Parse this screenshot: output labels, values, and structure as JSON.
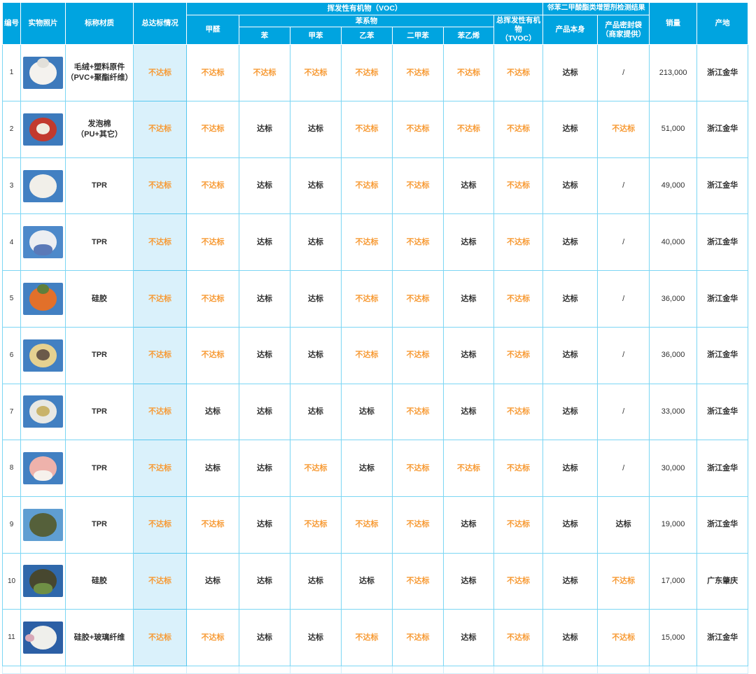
{
  "table": {
    "columns": {
      "id": "编号",
      "photo": "实物照片",
      "material": "标称材质",
      "overall": "总达标情况",
      "voc_group": "挥发性有机物（VOC）",
      "formaldehyde": "甲醛",
      "benzene_group": "苯系物",
      "benzene": "苯",
      "toluene": "甲苯",
      "ethylbenzene": "乙苯",
      "xylene": "二甲苯",
      "styrene": "苯乙烯",
      "tvoc": "总挥发性有机物\n（TVOC）",
      "phthalate_group": "邻苯二甲酸酯类增塑剂检测结果",
      "product_itself": "产品本身",
      "sealed_bag": "产品密封袋\n（商家提供）",
      "sales": "销量",
      "origin": "产地"
    },
    "status_labels": {
      "pass": "达标",
      "fail": "不达标",
      "not_applicable": "/"
    },
    "rows": [
      {
        "id": "1",
        "material": "毛绒+塑料原件\n（PVC+聚酯纤维）",
        "overall": "不达标",
        "formaldehyde": "不达标",
        "benzene": "不达标",
        "toluene": "不达标",
        "ethylbenzene": "不达标",
        "xylene": "不达标",
        "styrene": "不达标",
        "tvoc": "不达标",
        "product_itself": "达标",
        "sealed_bag": "/",
        "sales": "213,000",
        "origin": "浙江金华",
        "photo": {
          "desc": "white-plush-dog",
          "bg": "#3d7abc",
          "main": "#f4f2ee",
          "accent": "#e2e0da",
          "accent_pos": "top"
        }
      },
      {
        "id": "2",
        "material": "发泡棉\n（PU+其它）",
        "overall": "不达标",
        "formaldehyde": "不达标",
        "benzene": "达标",
        "toluene": "达标",
        "ethylbenzene": "不达标",
        "xylene": "不达标",
        "styrene": "不达标",
        "tvoc": "不达标",
        "product_itself": "达标",
        "sealed_bag": "不达标",
        "sales": "51,000",
        "origin": "浙江金华",
        "photo": {
          "desc": "red-foam-food-package",
          "bg": "#3d7abc",
          "main": "#c23a2e",
          "accent": "#f0ece0",
          "accent_pos": "center"
        }
      },
      {
        "id": "3",
        "material": "TPR",
        "overall": "不达标",
        "formaldehyde": "不达标",
        "benzene": "达标",
        "toluene": "达标",
        "ethylbenzene": "不达标",
        "xylene": "不达标",
        "styrene": "达标",
        "tvoc": "不达标",
        "product_itself": "达标",
        "sealed_bag": "/",
        "sales": "49,000",
        "origin": "浙江金华",
        "photo": {
          "desc": "white-squish-ball",
          "bg": "#4280c2",
          "main": "#f1efe9",
          "accent": null
        }
      },
      {
        "id": "4",
        "material": "TPR",
        "overall": "不达标",
        "formaldehyde": "不达标",
        "benzene": "达标",
        "toluene": "达标",
        "ethylbenzene": "不达标",
        "xylene": "不达标",
        "styrene": "达标",
        "tvoc": "不达标",
        "product_itself": "达标",
        "sealed_bag": "/",
        "sales": "40,000",
        "origin": "浙江金华",
        "photo": {
          "desc": "blue-white-figure-toy",
          "bg": "#4d89ca",
          "main": "#eceef2",
          "accent": "#5a79b8",
          "accent_pos": "bottom"
        }
      },
      {
        "id": "5",
        "material": "硅胶",
        "overall": "不达标",
        "formaldehyde": "不达标",
        "benzene": "达标",
        "toluene": "达标",
        "ethylbenzene": "不达标",
        "xylene": "不达标",
        "styrene": "达标",
        "tvoc": "不达标",
        "product_itself": "达标",
        "sealed_bag": "/",
        "sales": "36,000",
        "origin": "浙江金华",
        "photo": {
          "desc": "orange-fruit-toy",
          "bg": "#4280c2",
          "main": "#e2702a",
          "accent": "#5f7f3c",
          "accent_pos": "top"
        }
      },
      {
        "id": "6",
        "material": "TPR",
        "overall": "不达标",
        "formaldehyde": "不达标",
        "benzene": "达标",
        "toluene": "达标",
        "ethylbenzene": "不达标",
        "xylene": "不达标",
        "styrene": "达标",
        "tvoc": "不达标",
        "product_itself": "达标",
        "sealed_bag": "/",
        "sales": "36,000",
        "origin": "浙江金华",
        "photo": {
          "desc": "yellow-capybara-toy",
          "bg": "#4280c2",
          "main": "#e5d190",
          "accent": "#6b5a4a",
          "accent_pos": "center"
        }
      },
      {
        "id": "7",
        "material": "TPR",
        "overall": "不达标",
        "formaldehyde": "达标",
        "benzene": "达标",
        "toluene": "达标",
        "ethylbenzene": "达标",
        "xylene": "不达标",
        "styrene": "达标",
        "tvoc": "不达标",
        "product_itself": "达标",
        "sealed_bag": "/",
        "sales": "33,000",
        "origin": "浙江金华",
        "photo": {
          "desc": "white-mesh-squeeze-ball",
          "bg": "#4280c2",
          "main": "#e8e8e4",
          "accent": "#c9b36a",
          "accent_pos": "center"
        }
      },
      {
        "id": "8",
        "material": "TPR",
        "overall": "不达标",
        "formaldehyde": "达标",
        "benzene": "达标",
        "toluene": "不达标",
        "ethylbenzene": "达标",
        "xylene": "不达标",
        "styrene": "不达标",
        "tvoc": "不达标",
        "product_itself": "达标",
        "sealed_bag": "/",
        "sales": "30,000",
        "origin": "浙江金华",
        "photo": {
          "desc": "pink-cat-toy",
          "bg": "#4280c2",
          "main": "#eeb2ab",
          "accent": "#f6f1ec",
          "accent_pos": "bottom"
        }
      },
      {
        "id": "9",
        "material": "TPR",
        "overall": "不达标",
        "formaldehyde": "不达标",
        "benzene": "达标",
        "toluene": "不达标",
        "ethylbenzene": "不达标",
        "xylene": "不达标",
        "styrene": "达标",
        "tvoc": "不达标",
        "product_itself": "达标",
        "sealed_bag": "达标",
        "sales": "19,000",
        "origin": "浙江金华",
        "photo": {
          "desc": "green-toad-toy",
          "bg": "#5f9ed2",
          "main": "#55603a",
          "accent": null
        }
      },
      {
        "id": "10",
        "material": "硅胶",
        "overall": "不达标",
        "formaldehyde": "达标",
        "benzene": "达标",
        "toluene": "达标",
        "ethylbenzene": "达标",
        "xylene": "不达标",
        "styrene": "达标",
        "tvoc": "不达标",
        "product_itself": "达标",
        "sealed_bag": "不达标",
        "sales": "17,000",
        "origin": "广东肇庆",
        "photo": {
          "desc": "mossy-rock-toy",
          "bg": "#2f68ab",
          "main": "#47472f",
          "accent": "#6f8f45",
          "accent_pos": "bottom"
        }
      },
      {
        "id": "11",
        "material": "硅胶+玻璃纤维",
        "overall": "不达标",
        "formaldehyde": "不达标",
        "benzene": "达标",
        "toluene": "达标",
        "ethylbenzene": "不达标",
        "xylene": "不达标",
        "styrene": "达标",
        "tvoc": "不达标",
        "product_itself": "达标",
        "sealed_bag": "不达标",
        "sales": "15,000",
        "origin": "浙江金华",
        "photo": {
          "desc": "white-round-toy-with-pink-charm",
          "bg": "#2c5fa5",
          "main": "#efefeb",
          "accent": "#d8a8b8",
          "accent_pos": "left"
        }
      }
    ]
  },
  "colors": {
    "header_background": "#00a4e0",
    "body_border": "#7cd6f4",
    "overall_cell_background": "#daf1fb",
    "fail_text": "#f79a34",
    "pass_text": "#2f2f2f"
  }
}
